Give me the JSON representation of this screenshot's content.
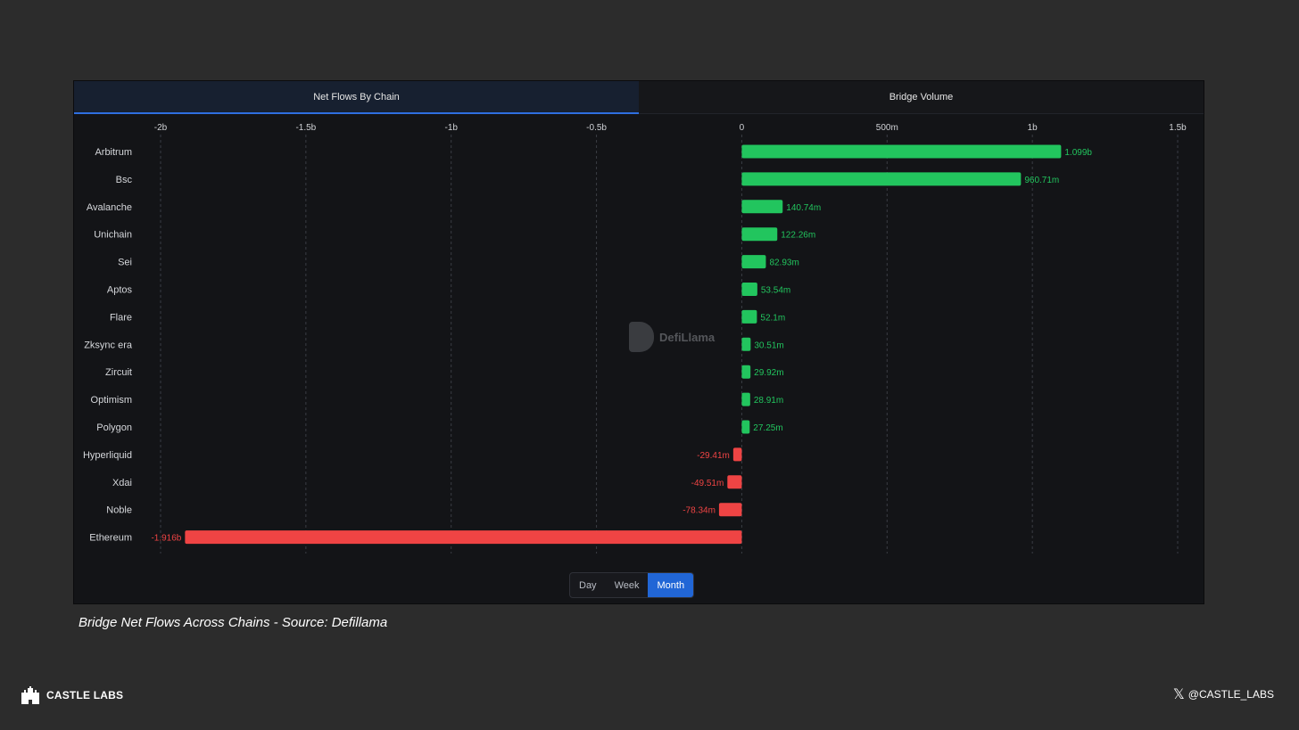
{
  "tabs": [
    {
      "label": "Net Flows By Chain",
      "active": true
    },
    {
      "label": "Bridge Volume",
      "active": false
    }
  ],
  "periods": [
    {
      "label": "Day",
      "active": false
    },
    {
      "label": "Week",
      "active": false
    },
    {
      "label": "Month",
      "active": true
    }
  ],
  "watermark": {
    "text": "DefiLlama"
  },
  "caption": "Bridge Net Flows Across Chains - Source: Defillama",
  "brand": {
    "left_name": "CASTLE LABS",
    "right_handle": "@CASTLE_LABS"
  },
  "colors": {
    "positive": "#22c55e",
    "negative": "#ef4444",
    "accent": "#2166d6"
  },
  "chart_data": {
    "type": "bar",
    "orientation": "horizontal",
    "xlim": [
      -2000000000,
      1500000000
    ],
    "ticks": [
      {
        "value": -2000000000,
        "label": "-2b"
      },
      {
        "value": -1500000000,
        "label": "-1.5b"
      },
      {
        "value": -1000000000,
        "label": "-1b"
      },
      {
        "value": -500000000,
        "label": "-0.5b"
      },
      {
        "value": 0,
        "label": "0"
      },
      {
        "value": 500000000,
        "label": "500m"
      },
      {
        "value": 1000000000,
        "label": "1b"
      },
      {
        "value": 1500000000,
        "label": "1.5b"
      }
    ],
    "grid": true,
    "categories": [
      "Arbitrum",
      "Bsc",
      "Avalanche",
      "Unichain",
      "Sei",
      "Aptos",
      "Flare",
      "Zksync era",
      "Zircuit",
      "Optimism",
      "Polygon",
      "Hyperliquid",
      "Xdai",
      "Noble",
      "Ethereum"
    ],
    "values": [
      1099000000,
      960710000,
      140740000,
      122260000,
      82930000,
      53540000,
      52100000,
      30510000,
      29920000,
      28910000,
      27250000,
      -29410000,
      -49510000,
      -78340000,
      -1916000000
    ],
    "labels": [
      "1.099b",
      "960.71m",
      "140.74m",
      "122.26m",
      "82.93m",
      "53.54m",
      "52.1m",
      "30.51m",
      "29.92m",
      "28.91m",
      "27.25m",
      "-29.41m",
      "-49.51m",
      "-78.34m",
      "-1.916b"
    ]
  }
}
